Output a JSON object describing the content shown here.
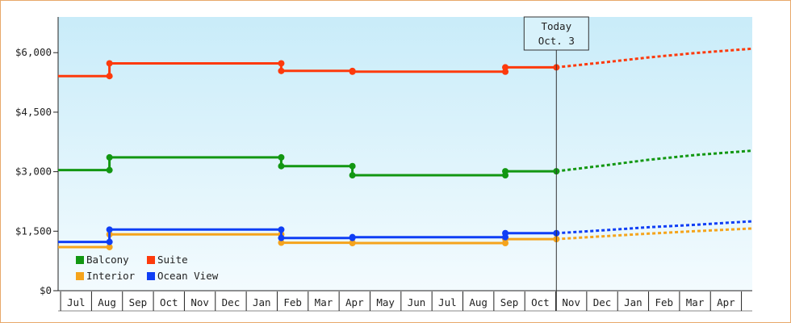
{
  "chart_data": {
    "type": "line",
    "style": "step",
    "currency": "$",
    "ylim": [
      0,
      6900
    ],
    "yticks": [
      {
        "value": 0,
        "label": "$0"
      },
      {
        "value": 1500,
        "label": "$1,500"
      },
      {
        "value": 3000,
        "label": "$3,000"
      },
      {
        "value": 4500,
        "label": "$4,500"
      },
      {
        "value": 6000,
        "label": "$6,000"
      }
    ],
    "months": [
      "Jul",
      "Aug",
      "Sep",
      "Oct",
      "Nov",
      "Dec",
      "Jan",
      "Feb",
      "Mar",
      "Apr",
      "May",
      "Jun",
      "Jul",
      "Aug",
      "Sep",
      "Oct",
      "Nov",
      "Dec",
      "Jan",
      "Feb",
      "Mar",
      "Apr"
    ],
    "today": {
      "line1": "Today",
      "line2": "Oct. 3",
      "x": 15.52
    },
    "x_domain": [
      -0.58,
      21.85
    ],
    "legend_placement": "bottom-left",
    "series": [
      {
        "name": "Balcony",
        "color": "#129712",
        "points": [
          [
            -0.58,
            3040
          ],
          [
            1.08,
            3040
          ],
          [
            1.08,
            3360
          ],
          [
            6.63,
            3360
          ],
          [
            6.63,
            3140
          ],
          [
            8.93,
            3140
          ],
          [
            8.93,
            2910
          ],
          [
            13.87,
            2910
          ],
          [
            13.87,
            3010
          ],
          [
            15.52,
            3010
          ]
        ],
        "forecast": [
          [
            15.52,
            3010
          ],
          [
            17.0,
            3150
          ],
          [
            18.5,
            3300
          ],
          [
            20.0,
            3420
          ],
          [
            21.85,
            3530
          ]
        ]
      },
      {
        "name": "Suite",
        "color": "#fd3a0c",
        "points": [
          [
            -0.58,
            5410
          ],
          [
            1.08,
            5410
          ],
          [
            1.08,
            5730
          ],
          [
            6.63,
            5730
          ],
          [
            6.63,
            5540
          ],
          [
            8.93,
            5540
          ],
          [
            8.93,
            5520
          ],
          [
            13.87,
            5520
          ],
          [
            13.87,
            5630
          ],
          [
            15.52,
            5630
          ]
        ],
        "forecast": [
          [
            15.52,
            5630
          ],
          [
            17.0,
            5750
          ],
          [
            18.5,
            5880
          ],
          [
            20.0,
            5990
          ],
          [
            21.85,
            6100
          ]
        ]
      },
      {
        "name": "Interior",
        "color": "#f5a41c",
        "points": [
          [
            -0.58,
            1100
          ],
          [
            1.08,
            1100
          ],
          [
            1.08,
            1420
          ],
          [
            6.63,
            1420
          ],
          [
            6.63,
            1210
          ],
          [
            8.93,
            1210
          ],
          [
            8.93,
            1200
          ],
          [
            13.87,
            1200
          ],
          [
            13.87,
            1300
          ],
          [
            15.52,
            1300
          ]
        ],
        "forecast": [
          [
            15.52,
            1300
          ],
          [
            17.0,
            1370
          ],
          [
            18.5,
            1440
          ],
          [
            20.0,
            1500
          ],
          [
            21.85,
            1570
          ]
        ]
      },
      {
        "name": "Ocean View",
        "color": "#0f3ef5",
        "points": [
          [
            -0.58,
            1230
          ],
          [
            1.08,
            1230
          ],
          [
            1.08,
            1540
          ],
          [
            6.63,
            1540
          ],
          [
            6.63,
            1330
          ],
          [
            8.93,
            1330
          ],
          [
            8.93,
            1350
          ],
          [
            13.87,
            1350
          ],
          [
            13.87,
            1450
          ],
          [
            15.52,
            1450
          ]
        ],
        "forecast": [
          [
            15.52,
            1450
          ],
          [
            17.0,
            1520
          ],
          [
            18.5,
            1600
          ],
          [
            20.0,
            1660
          ],
          [
            21.85,
            1750
          ]
        ]
      }
    ]
  }
}
